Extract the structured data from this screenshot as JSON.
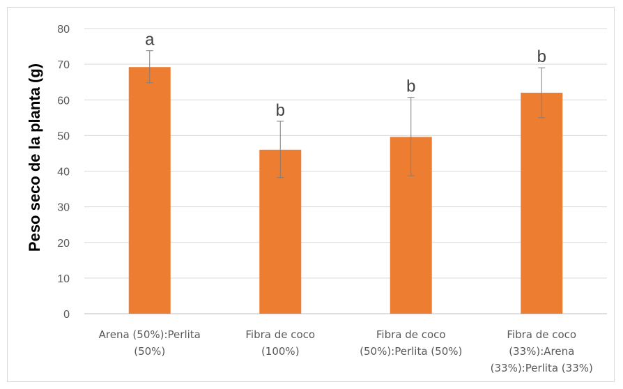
{
  "chart_data": {
    "type": "bar",
    "title": "",
    "xlabel": "",
    "ylabel": "Peso seco de la planta (g)",
    "ylim": [
      0,
      80
    ],
    "yticks": [
      0,
      10,
      20,
      30,
      40,
      50,
      60,
      70,
      80
    ],
    "grid": true,
    "bar_color": "#ed7d31",
    "categories": [
      [
        "Arena (50%):Perlita",
        "(50%)"
      ],
      [
        "Fibra de coco",
        "(100%)"
      ],
      [
        "Fibra de coco",
        "(50%):Perlita (50%)"
      ],
      [
        "Fibra de coco",
        "(33%):Arena",
        "(33%):Perlita (33%)"
      ]
    ],
    "values": [
      69.2,
      46.0,
      49.6,
      62.0
    ],
    "error_upper": [
      73.8,
      54.0,
      60.7,
      69.0
    ],
    "error_lower": [
      64.8,
      38.2,
      38.7,
      55.0
    ],
    "significance_letters": [
      "a",
      "b",
      "b",
      "b"
    ]
  }
}
